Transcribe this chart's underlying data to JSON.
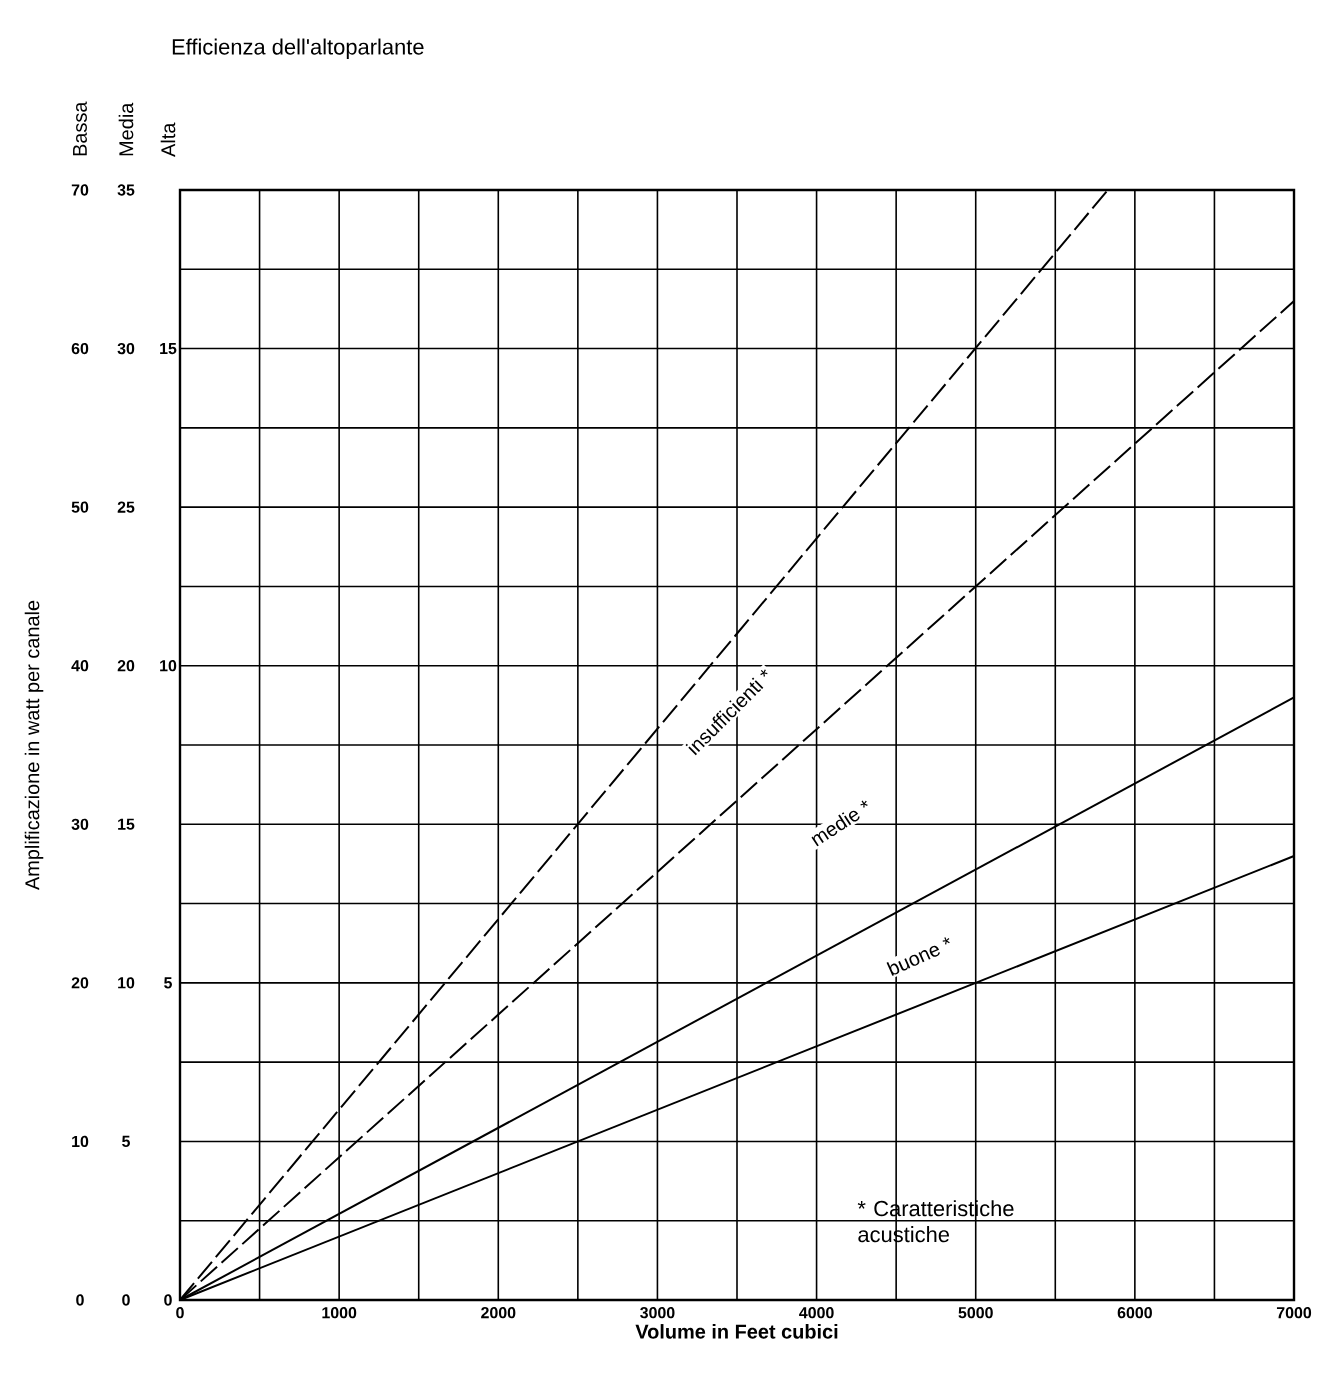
{
  "chart_data": {
    "type": "line",
    "title": "Efficienza dell'altoparlante",
    "xlabel": "Volume in Feet cubici",
    "ylabel": "Amplificazione in watt per canale",
    "annotations": [
      "Bassa",
      "Media",
      "Alta",
      "insufficienti *",
      "medie *",
      "buone *",
      "* Caratteristiche acustiche"
    ],
    "series": [
      {
        "color": "#000000",
        "line_style": "dashed",
        "x": [
          0,
          5830
        ],
        "values": [
          0,
          70
        ]
      },
      {
        "color": "#000000",
        "line_style": "dashed",
        "x": [
          0,
          7000
        ],
        "values": [
          0,
          63
        ]
      },
      {
        "color": "#000000",
        "line_style": "solid",
        "x": [
          0,
          7000
        ],
        "values": [
          0,
          38
        ]
      },
      {
        "color": "#000000",
        "line_style": "solid",
        "x": [
          0,
          7000
        ],
        "values": [
          0,
          28
        ]
      }
    ],
    "xlim": [
      0,
      7000
    ],
    "ylim": [
      0,
      70
    ],
    "xticks": [
      0,
      {
        "value": 500,
        "label": null
      },
      1000,
      {
        "value": 1500,
        "label": null
      },
      2000,
      {
        "value": 2500,
        "label": null
      },
      3000,
      {
        "value": 3500,
        "label": null
      },
      4000,
      {
        "value": 4500,
        "label": null
      },
      5000,
      {
        "value": 5500,
        "label": null
      },
      6000,
      {
        "value": 6500,
        "label": null
      },
      7000
    ],
    "yticks": [
      0,
      {
        "value": 5,
        "label": null
      },
      10,
      {
        "value": 15,
        "label": null
      },
      20,
      {
        "value": 25,
        "label": null
      },
      30,
      {
        "value": 35,
        "label": null
      },
      40,
      {
        "value": 45,
        "label": null
      },
      50,
      {
        "value": 55,
        "label": null
      },
      60,
      {
        "value": 65,
        "label": null
      },
      70
    ],
    "y2lim": [
      0,
      35
    ],
    "y2ticks": [
      0,
      5,
      10,
      15,
      20,
      25,
      30,
      35
    ],
    "y3lim": [
      0,
      17.5
    ],
    "y3ticks": [
      0,
      5,
      10,
      15
    ],
    "grid": true
  }
}
